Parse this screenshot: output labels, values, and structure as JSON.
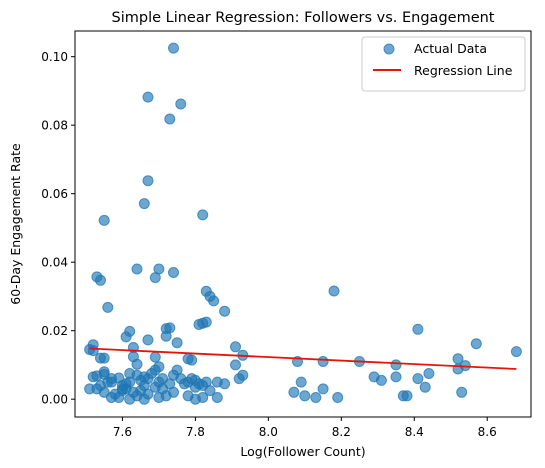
{
  "chart_data": {
    "type": "scatter",
    "title": "Simple Linear Regression: Followers vs. Engagement",
    "xlabel": "Log(Follower Count)",
    "ylabel": "60-Day Engagement Rate",
    "xlim": [
      7.47,
      8.72
    ],
    "ylim": [
      -0.0052,
      0.1075
    ],
    "xticks": [
      7.6,
      7.8,
      8.0,
      8.2,
      8.4,
      8.6
    ],
    "xtick_labels": [
      "7.6",
      "7.8",
      "8.0",
      "8.2",
      "8.4",
      "8.6"
    ],
    "yticks": [
      0.0,
      0.02,
      0.04,
      0.06,
      0.08,
      0.1
    ],
    "ytick_labels": [
      "0.00",
      "0.02",
      "0.04",
      "0.06",
      "0.08",
      "0.10"
    ],
    "grid": false,
    "legend_position": "top-right",
    "series": [
      {
        "name": "Actual Data",
        "kind": "scatter",
        "color": "#1f77b4",
        "points": [
          [
            7.74,
            0.1025
          ],
          [
            7.67,
            0.0882
          ],
          [
            7.76,
            0.0862
          ],
          [
            7.73,
            0.0818
          ],
          [
            7.67,
            0.0638
          ],
          [
            7.66,
            0.0571
          ],
          [
            7.82,
            0.0538
          ],
          [
            7.55,
            0.0522
          ],
          [
            7.53,
            0.0357
          ],
          [
            7.54,
            0.0347
          ],
          [
            7.64,
            0.038
          ],
          [
            7.7,
            0.038
          ],
          [
            7.69,
            0.0355
          ],
          [
            7.74,
            0.037
          ],
          [
            7.83,
            0.0315
          ],
          [
            7.84,
            0.03
          ],
          [
            7.85,
            0.0287
          ],
          [
            8.18,
            0.0316
          ],
          [
            7.56,
            0.0268
          ],
          [
            7.88,
            0.0257
          ],
          [
            7.73,
            0.0208
          ],
          [
            7.72,
            0.0206
          ],
          [
            7.81,
            0.0218
          ],
          [
            7.83,
            0.0225
          ],
          [
            7.82,
            0.0222
          ],
          [
            8.41,
            0.0204
          ],
          [
            8.57,
            0.0162
          ],
          [
            8.68,
            0.0139
          ],
          [
            7.62,
            0.0198
          ],
          [
            7.61,
            0.0182
          ],
          [
            7.67,
            0.0173
          ],
          [
            7.72,
            0.0184
          ],
          [
            7.75,
            0.0165
          ],
          [
            7.52,
            0.0159
          ],
          [
            7.51,
            0.0145
          ],
          [
            7.52,
            0.0142
          ],
          [
            7.91,
            0.0153
          ],
          [
            7.93,
            0.0128
          ],
          [
            7.55,
            0.012
          ],
          [
            7.54,
            0.012
          ],
          [
            7.63,
            0.0124
          ],
          [
            7.69,
            0.0123
          ],
          [
            7.78,
            0.0118
          ],
          [
            7.79,
            0.0114
          ],
          [
            7.7,
            0.0095
          ],
          [
            7.64,
            0.0102
          ],
          [
            7.63,
            0.0151
          ],
          [
            8.08,
            0.011
          ],
          [
            8.15,
            0.011
          ],
          [
            8.25,
            0.011
          ],
          [
            8.35,
            0.01
          ],
          [
            8.52,
            0.0118
          ],
          [
            8.54,
            0.0098
          ],
          [
            8.52,
            0.0088
          ],
          [
            7.52,
            0.0065
          ],
          [
            7.53,
            0.0068
          ],
          [
            7.55,
            0.0072
          ],
          [
            7.57,
            0.006
          ],
          [
            7.59,
            0.0062
          ],
          [
            7.6,
            0.004
          ],
          [
            7.61,
            0.0045
          ],
          [
            7.62,
            0.0075
          ],
          [
            7.64,
            0.007
          ],
          [
            7.65,
            0.0055
          ],
          [
            7.66,
            0.0065
          ],
          [
            7.67,
            0.006
          ],
          [
            7.68,
            0.0075
          ],
          [
            7.69,
            0.0085
          ],
          [
            7.7,
            0.005
          ],
          [
            7.71,
            0.006
          ],
          [
            7.73,
            0.0045
          ],
          [
            7.74,
            0.007
          ],
          [
            7.75,
            0.0085
          ],
          [
            7.76,
            0.006
          ],
          [
            7.77,
            0.0045
          ],
          [
            7.78,
            0.005
          ],
          [
            7.79,
            0.006
          ],
          [
            7.8,
            0.0055
          ],
          [
            7.81,
            0.0045
          ],
          [
            7.82,
            0.004
          ],
          [
            7.83,
            0.005
          ],
          [
            7.84,
            0.0025
          ],
          [
            7.86,
            0.005
          ],
          [
            7.88,
            0.0045
          ],
          [
            7.91,
            0.01
          ],
          [
            7.92,
            0.006
          ],
          [
            7.93,
            0.007
          ],
          [
            7.53,
            0.003
          ],
          [
            7.55,
            0.002
          ],
          [
            7.56,
            0.005
          ],
          [
            7.58,
            0.0015
          ],
          [
            7.6,
            0.0025
          ],
          [
            7.61,
            0.003
          ],
          [
            7.63,
            0.002
          ],
          [
            7.65,
            0.0025
          ],
          [
            7.67,
            0.0015
          ],
          [
            7.69,
            0.0035
          ],
          [
            7.71,
            0.003
          ],
          [
            7.72,
            0.001
          ],
          [
            7.74,
            0.002
          ],
          [
            7.8,
            0.0035
          ],
          [
            7.51,
            0.003
          ],
          [
            7.54,
            0.004
          ],
          [
            7.57,
            0.0005
          ],
          [
            7.59,
            0.0005
          ],
          [
            7.62,
            0.0
          ],
          [
            7.64,
            0.001
          ],
          [
            7.66,
            0.0
          ],
          [
            7.7,
            0.0005
          ],
          [
            7.78,
            0.001
          ],
          [
            7.8,
            0.0
          ],
          [
            7.82,
            0.0005
          ],
          [
            7.86,
            0.0005
          ],
          [
            8.07,
            0.002
          ],
          [
            8.09,
            0.005
          ],
          [
            8.1,
            0.001
          ],
          [
            8.13,
            0.0005
          ],
          [
            8.15,
            0.003
          ],
          [
            8.19,
            0.0005
          ],
          [
            8.29,
            0.0065
          ],
          [
            8.31,
            0.0055
          ],
          [
            8.35,
            0.0065
          ],
          [
            8.37,
            0.001
          ],
          [
            8.38,
            0.001
          ],
          [
            8.41,
            0.006
          ],
          [
            8.44,
            0.0075
          ],
          [
            8.43,
            0.0035
          ],
          [
            8.53,
            0.002
          ],
          [
            7.55,
            0.008
          ],
          [
            7.57,
            0.005
          ],
          [
            7.6,
            0.003
          ],
          [
            7.62,
            0.005
          ],
          [
            7.66,
            0.004
          ]
        ]
      },
      {
        "name": "Regression Line",
        "kind": "line",
        "color": "#e8140c",
        "points": [
          [
            7.51,
            0.0148
          ],
          [
            8.68,
            0.0088
          ]
        ]
      }
    ]
  }
}
